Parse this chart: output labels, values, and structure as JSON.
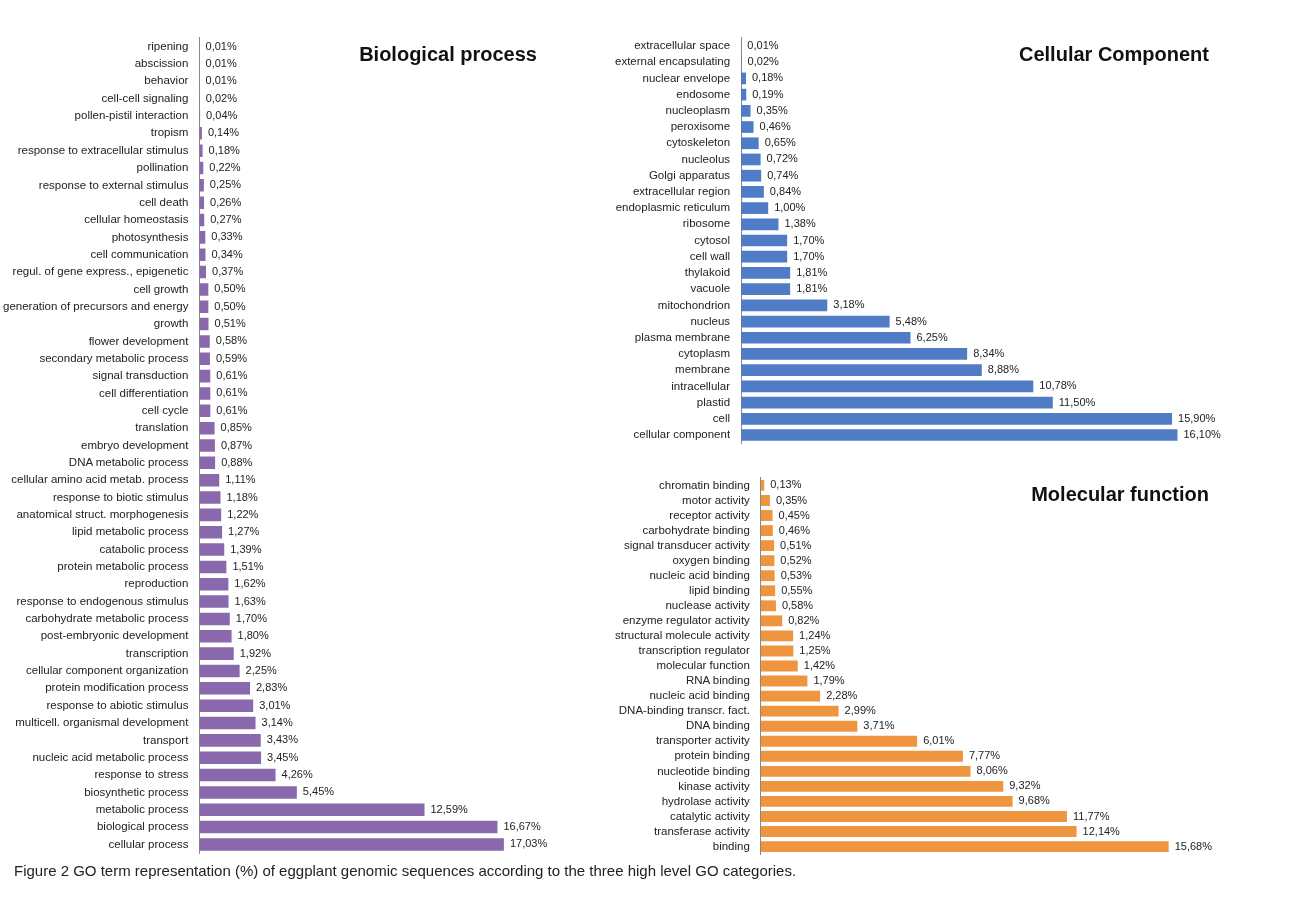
{
  "chart_data": [
    {
      "type": "bar",
      "orientation": "horizontal",
      "title": "Biological process",
      "legend": false,
      "grid": false,
      "tick_labels": "y",
      "categories": [
        "ripening",
        "abscission",
        "behavior",
        "cell-cell signaling",
        "pollen-pistil interaction",
        "tropism",
        "response to extracellular stimulus",
        "pollination",
        "response to external stimulus",
        "cell death",
        "cellular homeostasis",
        "photosynthesis",
        "cell communication",
        "regul. of gene express., epigenetic",
        "cell growth",
        "generation of precursors and energy",
        "growth",
        "flower development",
        "secondary metabolic process",
        "signal transduction",
        "cell differentiation",
        "cell cycle",
        "translation",
        "embryo development",
        "DNA metabolic process",
        "cellular amino acid metab. process",
        "response to biotic stimulus",
        "anatomical struct. morphogenesis",
        "lipid metabolic process",
        "catabolic process",
        "protein metabolic process",
        "reproduction",
        "response to endogenous stimulus",
        "carbohydrate metabolic process",
        "post-embryonic development",
        "transcription",
        "cellular component organization",
        "protein modification process",
        "response to abiotic stimulus",
        "multicell. organismal development",
        "transport",
        "nucleic acid metabolic process",
        "response to stress",
        "biosynthetic process",
        "metabolic process",
        "biological process",
        "cellular process"
      ],
      "series": [
        {
          "color": "#8a68ad",
          "values": [
            0.01,
            0.01,
            0.01,
            0.02,
            0.04,
            0.14,
            0.18,
            0.22,
            0.25,
            0.26,
            0.27,
            0.33,
            0.34,
            0.37,
            0.5,
            0.5,
            0.51,
            0.58,
            0.59,
            0.61,
            0.61,
            0.61,
            0.85,
            0.87,
            0.88,
            1.11,
            1.18,
            1.22,
            1.27,
            1.39,
            1.51,
            1.62,
            1.63,
            1.7,
            1.8,
            1.92,
            2.25,
            2.83,
            3.01,
            3.14,
            3.43,
            3.45,
            4.26,
            5.45,
            12.59,
            16.67,
            17.03
          ],
          "value_labels": [
            "0,01%",
            "0,01%",
            "0,01%",
            "0,02%",
            "0,04%",
            "0,14%",
            "0,18%",
            "0,22%",
            "0,25%",
            "0,26%",
            "0,27%",
            "0,33%",
            "0,34%",
            "0,37%",
            "0,50%",
            "0,50%",
            "0,51%",
            "0,58%",
            "0,59%",
            "0,61%",
            "0,61%",
            "0,61%",
            "0,85%",
            "0,87%",
            "0,88%",
            "1,11%",
            "1,18%",
            "1,22%",
            "1,27%",
            "1,39%",
            "1,51%",
            "1,62%",
            "1,63%",
            "1,70%",
            "1,80%",
            "1,92%",
            "2,25%",
            "2,83%",
            "3,01%",
            "3,14%",
            "3,43%",
            "3,45%",
            "4,26%",
            "5,45%",
            "12,59%",
            "16,67%",
            "17,03%"
          ]
        }
      ],
      "annotations": [
        "Figure 2 GO term representation (%) of eggplant genomic sequences according to the three high level GO categories."
      ]
    },
    {
      "type": "bar",
      "orientation": "horizontal",
      "title": "Cellular Component",
      "legend": false,
      "grid": false,
      "tick_labels": "y",
      "categories": [
        "extracellular space",
        "external encapsulating",
        "nuclear envelope",
        "endosome",
        "nucleoplasm",
        "peroxisome",
        "cytoskeleton",
        "nucleolus",
        "Golgi apparatus",
        "extracellular region",
        "endoplasmic reticulum",
        "ribosome",
        "cytosol",
        "cell wall",
        "thylakoid",
        "vacuole",
        "mitochondrion",
        "nucleus",
        "plasma membrane",
        "cytoplasm",
        "membrane",
        "intracellular",
        "plastid",
        "cell",
        "cellular component"
      ],
      "series": [
        {
          "color": "#4f7cc4",
          "values": [
            0.01,
            0.02,
            0.18,
            0.19,
            0.35,
            0.46,
            0.65,
            0.72,
            0.74,
            0.84,
            1.0,
            1.38,
            1.7,
            1.7,
            1.81,
            1.81,
            3.18,
            5.48,
            6.25,
            8.34,
            8.88,
            10.78,
            11.5,
            15.9,
            16.1
          ],
          "value_labels": [
            "0,01%",
            "0,02%",
            "0,18%",
            "0,19%",
            "0,35%",
            "0,46%",
            "0,65%",
            "0,72%",
            "0,74%",
            "0,84%",
            "1,00%",
            "1,38%",
            "1,70%",
            "1,70%",
            "1,81%",
            "1,81%",
            "3,18%",
            "5,48%",
            "6,25%",
            "8,34%",
            "8,88%",
            "10,78%",
            "11,50%",
            "15,90%",
            "16,10%"
          ]
        }
      ]
    },
    {
      "type": "bar",
      "orientation": "horizontal",
      "title": "Molecular function",
      "legend": false,
      "grid": false,
      "tick_labels": "y",
      "categories": [
        "chromatin binding",
        "motor activity",
        "receptor activity",
        "carbohydrate binding",
        "signal transducer activity",
        "oxygen binding",
        "nucleic acid binding",
        "lipid binding",
        "nuclease activity",
        "enzyme regulator activity",
        "structural molecule activity",
        "transcription regulator",
        "molecular function",
        "RNA binding",
        "nucleic acid binding",
        "DNA-binding transcr. fact.",
        "DNA binding",
        "transporter activity",
        "protein binding",
        "nucleotide binding",
        "kinase activity",
        "hydrolase activity",
        "catalytic activity",
        "transferase activity",
        "binding"
      ],
      "series": [
        {
          "color": "#f0953f",
          "values": [
            0.13,
            0.35,
            0.45,
            0.46,
            0.51,
            0.52,
            0.53,
            0.55,
            0.58,
            0.82,
            1.24,
            1.25,
            1.42,
            1.79,
            2.28,
            2.99,
            3.71,
            6.01,
            7.77,
            8.06,
            9.32,
            9.68,
            11.77,
            12.14,
            15.68
          ],
          "value_labels": [
            "0,13%",
            "0,35%",
            "0,45%",
            "0,46%",
            "0,51%",
            "0,52%",
            "0,53%",
            "0,55%",
            "0,58%",
            "0,82%",
            "1,24%",
            "1,25%",
            "1,42%",
            "1,79%",
            "2,28%",
            "2,99%",
            "3,71%",
            "6,01%",
            "7,77%",
            "8,06%",
            "9,32%",
            "9,68%",
            "11,77%",
            "12,14%",
            "15,68%"
          ]
        }
      ]
    }
  ]
}
